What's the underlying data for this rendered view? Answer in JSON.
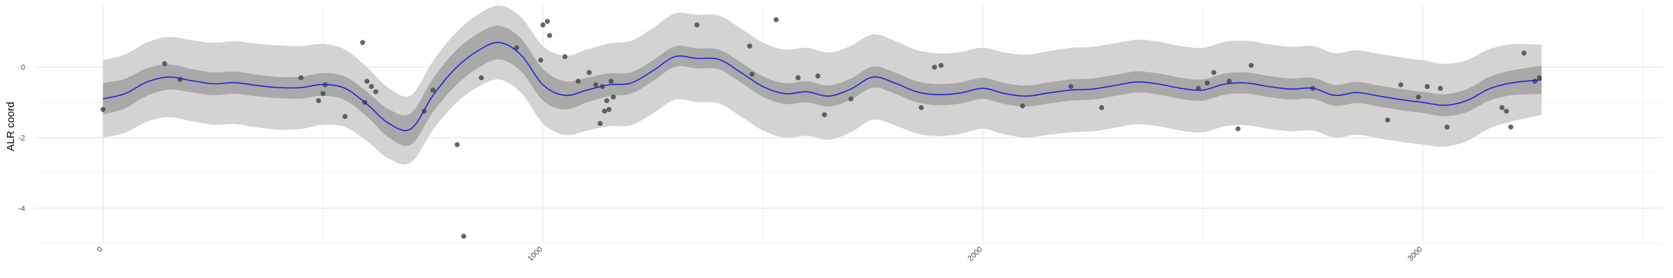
{
  "chart_data": {
    "type": "line",
    "title": "",
    "xlabel": "",
    "ylabel": "ALR coord",
    "xlim": [
      -155,
      3545
    ],
    "ylim": [
      -5.0,
      1.75
    ],
    "x_ticks": [
      0,
      1000,
      2000,
      3000
    ],
    "x_tick_labels": [
      "0",
      "1000",
      "2000",
      "3000"
    ],
    "y_ticks": [
      -4,
      -2,
      0
    ],
    "y_tick_labels": [
      "-4",
      "-2",
      "0"
    ],
    "grid": true,
    "legend": "none",
    "colors": {
      "line": "#1f1fe0",
      "inner_band": "#a9a9a9",
      "outer_band": "#d3d3d3",
      "points": "#4a4a4a",
      "grid_major": "#e6e6e6",
      "grid_minor": "#f2f2f2"
    },
    "series": [
      {
        "kind": "mean",
        "x": [
          0,
          50,
          100,
          150,
          200,
          250,
          300,
          350,
          400,
          450,
          500,
          550,
          600,
          650,
          700,
          750,
          800,
          850,
          900,
          950,
          1000,
          1050,
          1100,
          1150,
          1200,
          1250,
          1300,
          1350,
          1400,
          1450,
          1500,
          1550,
          1600,
          1650,
          1700,
          1750,
          1800,
          1850,
          1900,
          1950,
          2000,
          2050,
          2100,
          2150,
          2200,
          2250,
          2300,
          2350,
          2400,
          2450,
          2500,
          2550,
          2600,
          2650,
          2700,
          2750,
          2800,
          2850,
          2900,
          2950,
          3000,
          3050,
          3100,
          3150,
          3200,
          3250,
          3270
        ],
        "y": [
          -0.9,
          -0.75,
          -0.42,
          -0.28,
          -0.38,
          -0.47,
          -0.44,
          -0.52,
          -0.58,
          -0.58,
          -0.49,
          -0.6,
          -1.05,
          -1.6,
          -1.75,
          -0.8,
          -0.05,
          0.45,
          0.7,
          0.35,
          -0.5,
          -0.8,
          -0.65,
          -0.5,
          -0.45,
          -0.1,
          0.3,
          0.25,
          0.22,
          -0.15,
          -0.55,
          -0.75,
          -0.7,
          -0.82,
          -0.62,
          -0.28,
          -0.45,
          -0.7,
          -0.78,
          -0.73,
          -0.6,
          -0.75,
          -0.82,
          -0.73,
          -0.65,
          -0.62,
          -0.52,
          -0.42,
          -0.48,
          -0.6,
          -0.65,
          -0.48,
          -0.45,
          -0.55,
          -0.62,
          -0.6,
          -0.8,
          -0.72,
          -0.82,
          -0.92,
          -1.0,
          -1.08,
          -0.95,
          -0.62,
          -0.45,
          -0.38,
          -0.36
        ]
      },
      {
        "kind": "inner_band_half_width",
        "x": [
          0,
          200,
          400,
          500,
          600,
          700,
          800,
          900,
          1000,
          1100,
          1200,
          1400,
          1600,
          1800,
          2000,
          2200,
          2400,
          2600,
          2800,
          3000,
          3200,
          3270
        ],
        "y": [
          0.45,
          0.33,
          0.3,
          0.32,
          0.35,
          0.45,
          0.5,
          0.48,
          0.45,
          0.35,
          0.3,
          0.28,
          0.3,
          0.3,
          0.3,
          0.3,
          0.3,
          0.3,
          0.3,
          0.3,
          0.35,
          0.4
        ]
      },
      {
        "kind": "outer_band_half_width",
        "x": [
          0,
          200,
          400,
          500,
          600,
          700,
          800,
          900,
          1000,
          1100,
          1200,
          1400,
          1600,
          1800,
          2000,
          2200,
          2400,
          2600,
          2800,
          3000,
          3200,
          3270
        ],
        "y": [
          1.1,
          1.15,
          1.2,
          1.15,
          1.05,
          0.95,
          1.0,
          1.05,
          1.1,
          1.15,
          1.2,
          1.25,
          1.25,
          1.2,
          1.15,
          1.2,
          1.2,
          1.2,
          1.2,
          1.2,
          1.1,
          1.0
        ]
      },
      {
        "kind": "points",
        "x": [
          0,
          140,
          175,
          450,
          490,
          500,
          505,
          550,
          590,
          595,
          600,
          610,
          620,
          730,
          750,
          805,
          820,
          860,
          940,
          995,
          1000,
          1010,
          1015,
          1050,
          1080,
          1105,
          1120,
          1130,
          1135,
          1140,
          1145,
          1150,
          1155,
          1160,
          1350,
          1470,
          1475,
          1530,
          1580,
          1625,
          1640,
          1700,
          1860,
          1890,
          1905,
          2090,
          2200,
          2270,
          2490,
          2510,
          2525,
          2560,
          2580,
          2610,
          2750,
          2920,
          2950,
          2990,
          3010,
          3040,
          3055,
          3180,
          3190,
          3200,
          3230,
          3255,
          3265
        ],
        "y": [
          -1.2,
          0.1,
          -0.35,
          -0.3,
          -0.95,
          -0.75,
          -0.5,
          -1.4,
          0.7,
          -1.0,
          -0.4,
          -0.55,
          -0.7,
          -1.25,
          -0.65,
          -2.2,
          -4.8,
          -0.3,
          0.55,
          0.2,
          1.2,
          1.3,
          0.9,
          0.3,
          -0.4,
          -0.15,
          -0.5,
          -1.6,
          -0.55,
          -1.25,
          -0.95,
          -1.2,
          -0.4,
          -0.85,
          1.2,
          0.6,
          -0.2,
          1.35,
          -0.3,
          -0.25,
          -1.35,
          -0.9,
          -1.15,
          0.0,
          0.05,
          -1.1,
          -0.55,
          -1.15,
          -0.6,
          -0.45,
          -0.15,
          -0.4,
          -1.75,
          0.05,
          -0.6,
          -1.5,
          -0.5,
          -0.85,
          -0.55,
          -0.6,
          -1.7,
          -1.15,
          -1.25,
          -1.7,
          0.4,
          -0.4,
          -0.3
        ]
      }
    ]
  }
}
